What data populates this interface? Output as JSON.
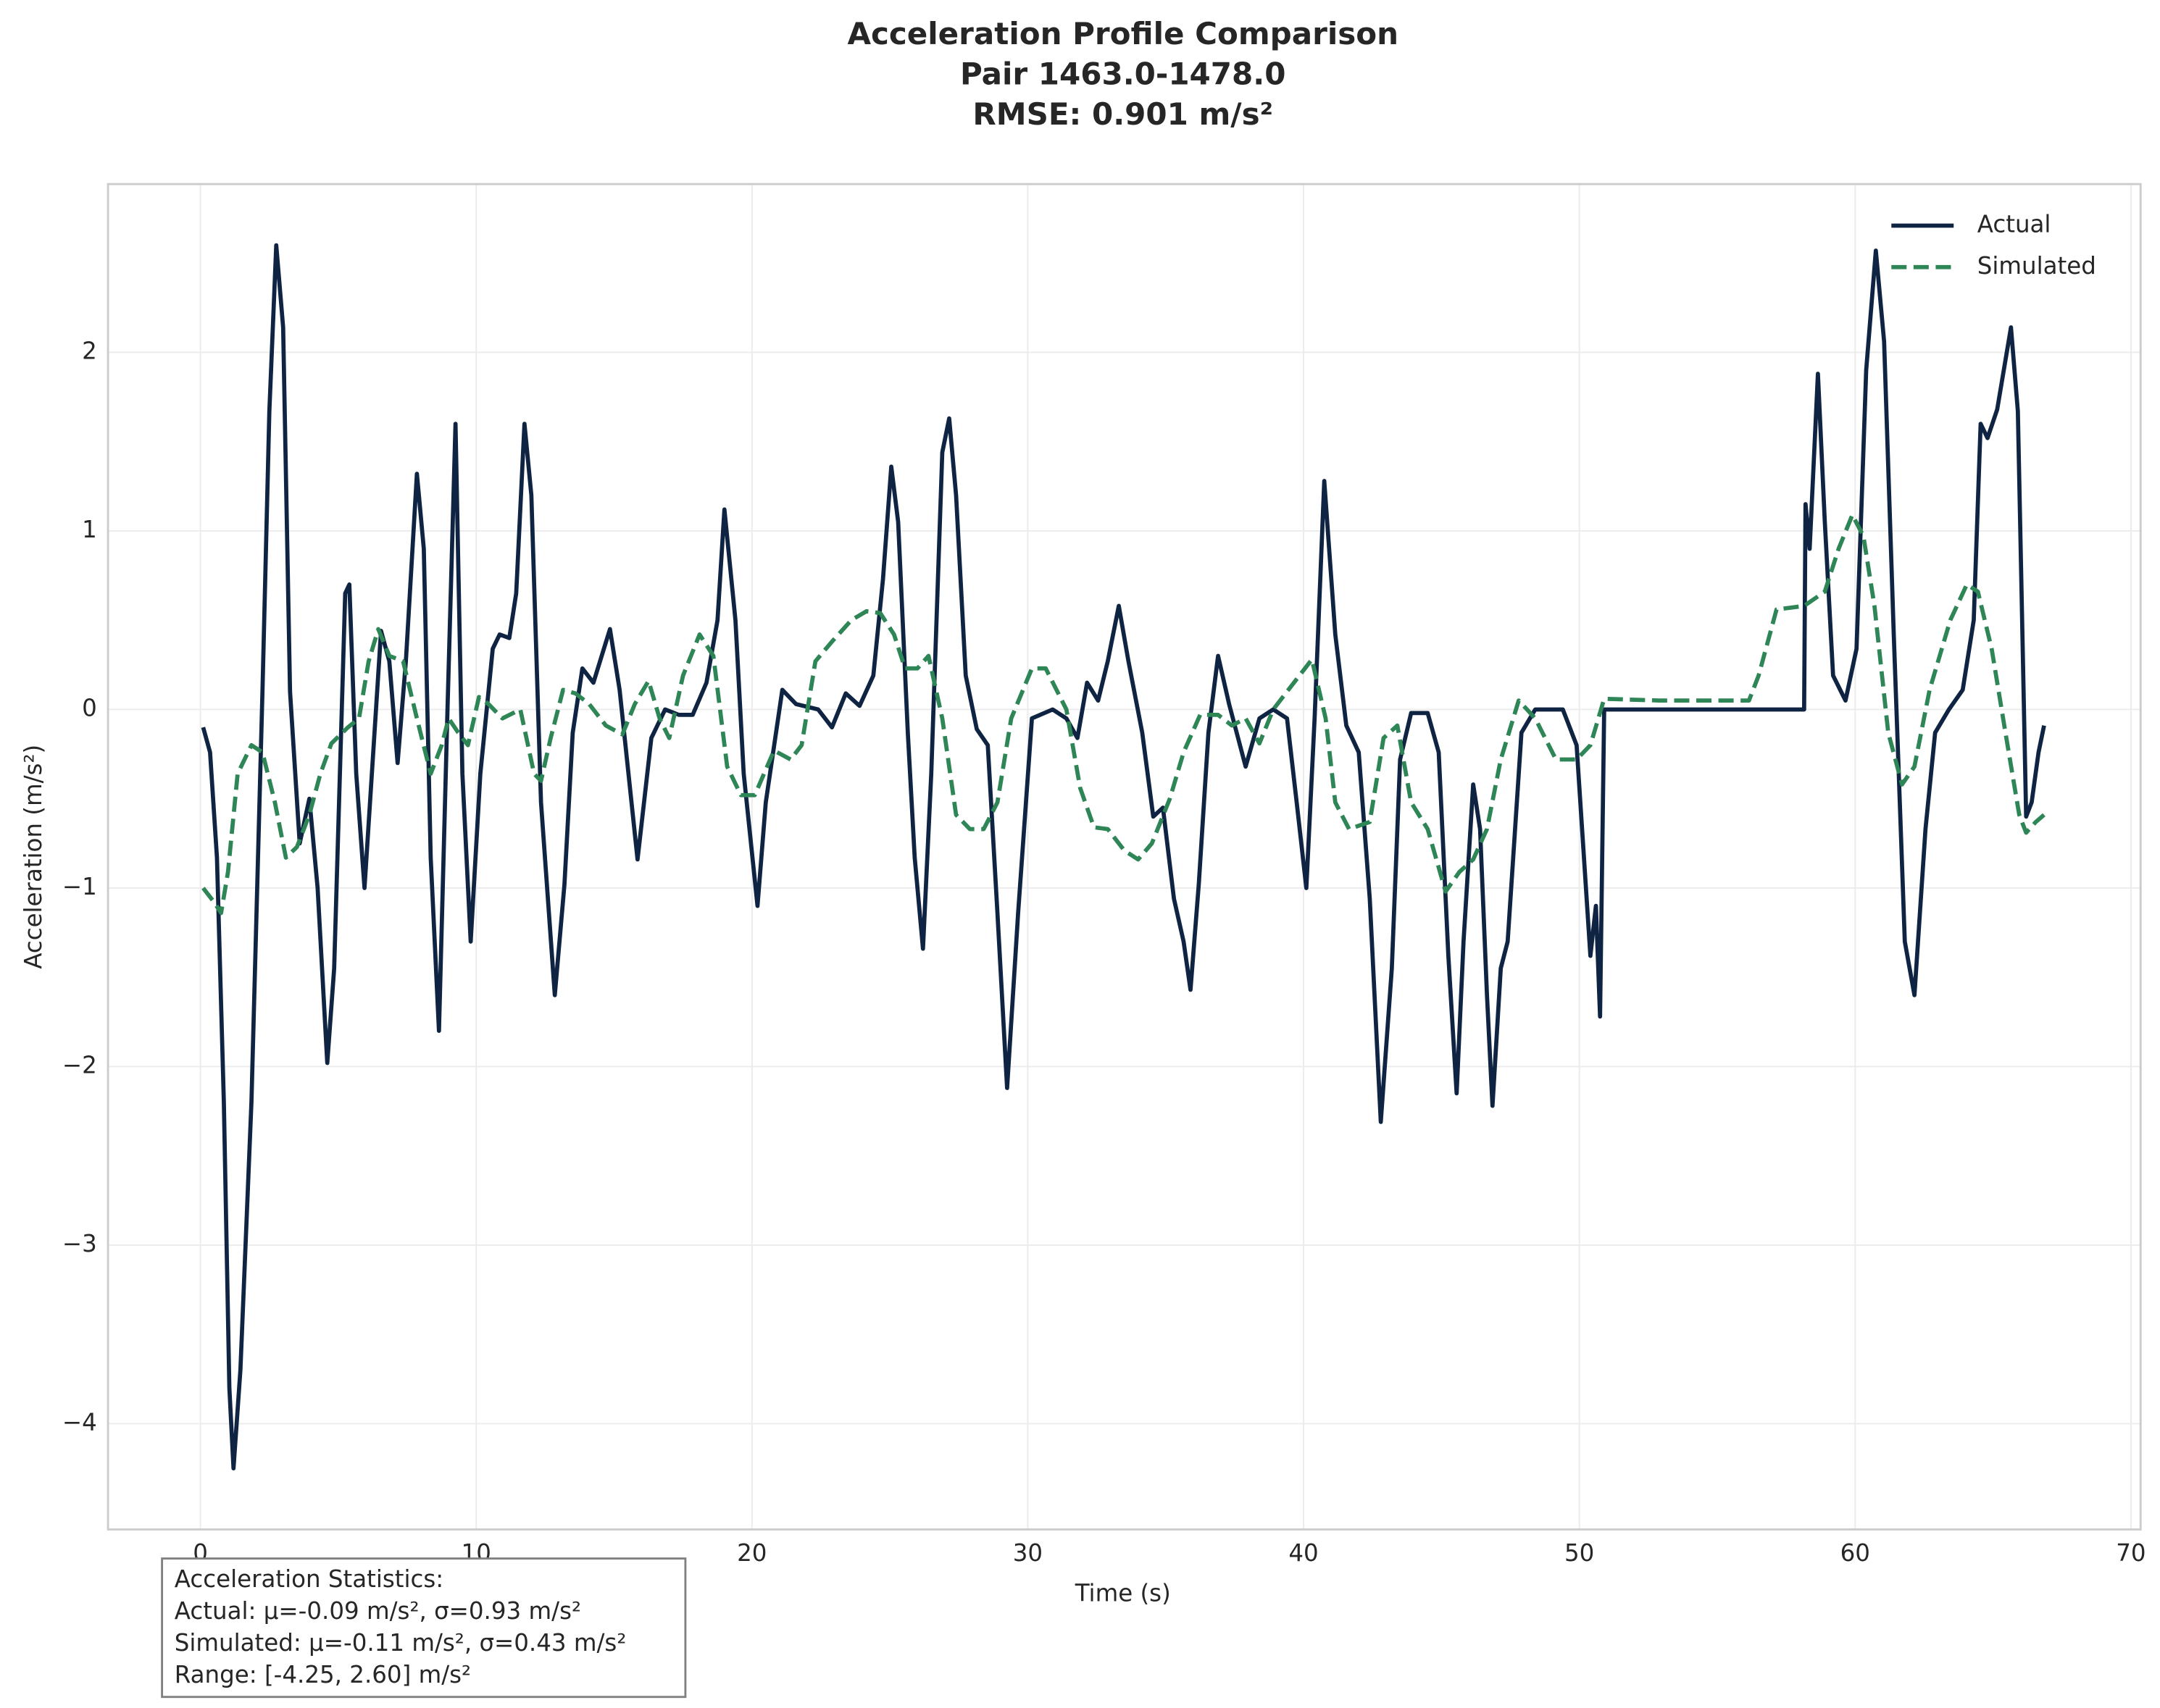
{
  "chart_data": {
    "type": "line",
    "title": "Acceleration Profile Comparison",
    "subtitle": "Pair 1463.0-1478.0",
    "rmse": "RMSE: 0.901 m/s²",
    "x_label": "Time (s)",
    "y_label": "Acceleration (m/s²)",
    "xlim": [
      -3.35,
      70.35
    ],
    "ylim": [
      -4.5925,
      2.9425
    ],
    "xticks": [
      0,
      10,
      20,
      30,
      40,
      50,
      60,
      70
    ],
    "yticks": [
      {
        "value": -4,
        "label": "−4"
      },
      {
        "value": -3,
        "label": "−3"
      },
      {
        "value": -2,
        "label": "−2"
      },
      {
        "value": -1,
        "label": "−1"
      },
      0,
      1,
      2
    ],
    "grid": true,
    "legend": "upper right",
    "series": [
      {
        "name": "Actual",
        "color": "#0f2342",
        "dash": "solid",
        "x": [
          0.1,
          0.35,
          0.6,
          0.85,
          1.05,
          1.2,
          1.45,
          1.85,
          2.25,
          2.5,
          2.75,
          3.0,
          3.25,
          3.6,
          3.95,
          4.25,
          4.6,
          4.85,
          5.25,
          5.4,
          5.65,
          5.95,
          6.25,
          6.55,
          6.85,
          7.15,
          7.45,
          7.85,
          8.1,
          8.35,
          8.65,
          8.95,
          9.25,
          9.5,
          9.8,
          10.15,
          10.6,
          10.85,
          11.2,
          11.45,
          11.75,
          12.0,
          12.35,
          12.85,
          13.2,
          13.5,
          13.85,
          14.25,
          14.85,
          15.2,
          15.85,
          16.35,
          16.85,
          17.35,
          17.85,
          18.35,
          18.75,
          19.0,
          19.4,
          19.7,
          20.2,
          20.5,
          21.1,
          21.6,
          22.4,
          22.9,
          23.4,
          23.9,
          24.4,
          24.75,
          25.05,
          25.3,
          25.65,
          25.9,
          26.2,
          26.5,
          26.9,
          27.15,
          27.4,
          27.75,
          28.15,
          28.55,
          28.9,
          29.25,
          29.65,
          30.15,
          30.9,
          31.4,
          31.8,
          32.15,
          32.55,
          32.9,
          33.3,
          33.65,
          34.15,
          34.55,
          34.9,
          35.3,
          35.65,
          35.9,
          36.2,
          36.55,
          36.9,
          37.3,
          37.9,
          38.4,
          38.9,
          39.4,
          39.75,
          40.1,
          40.4,
          40.75,
          41.15,
          41.55,
          42.0,
          42.4,
          42.8,
          43.2,
          43.5,
          43.9,
          44.5,
          44.9,
          45.25,
          45.55,
          45.8,
          46.15,
          46.4,
          46.65,
          46.85,
          47.15,
          47.4,
          47.9,
          48.4,
          49.4,
          49.9,
          50.4,
          50.6,
          50.75,
          50.9,
          58.15,
          58.2,
          58.35,
          58.65,
          58.9,
          59.2,
          59.65,
          60.05,
          60.4,
          60.75,
          61.05,
          61.4,
          61.8,
          62.15,
          62.55,
          62.9,
          63.4,
          63.9,
          64.3,
          64.55,
          64.8,
          65.15,
          65.65,
          65.9,
          66.2,
          66.4,
          66.65,
          66.85
        ],
        "values": [
          -0.1,
          -0.24,
          -0.83,
          -2.2,
          -3.8,
          -4.25,
          -3.7,
          -2.2,
          0.1,
          1.67,
          2.6,
          2.14,
          0.1,
          -0.75,
          -0.5,
          -1.0,
          -1.98,
          -1.45,
          0.65,
          0.7,
          -0.36,
          -1.0,
          -0.28,
          0.44,
          0.27,
          -0.3,
          0.27,
          1.32,
          0.9,
          -0.83,
          -1.8,
          -0.05,
          1.6,
          -0.36,
          -1.3,
          -0.36,
          0.34,
          0.42,
          0.4,
          0.65,
          1.6,
          1.2,
          -0.52,
          -1.6,
          -0.98,
          -0.13,
          0.23,
          0.15,
          0.45,
          0.11,
          -0.84,
          -0.16,
          0,
          -0.03,
          -0.03,
          0.15,
          0.5,
          1.12,
          0.5,
          -0.36,
          -1.1,
          -0.52,
          0.11,
          0.03,
          0,
          -0.1,
          0.09,
          0.02,
          0.19,
          0.73,
          1.36,
          1.05,
          -0.13,
          -0.83,
          -1.34,
          -0.36,
          1.44,
          1.63,
          1.2,
          0.19,
          -0.11,
          -0.2,
          -1.14,
          -2.12,
          -1.14,
          -0.05,
          0,
          -0.05,
          -0.16,
          0.15,
          0.05,
          0.27,
          0.58,
          0.27,
          -0.13,
          -0.6,
          -0.55,
          -1.06,
          -1.3,
          -1.57,
          -0.98,
          -0.13,
          0.3,
          0.03,
          -0.32,
          -0.05,
          0,
          -0.05,
          -0.52,
          -1.0,
          -0.05,
          1.28,
          0.42,
          -0.09,
          -0.24,
          -1.06,
          -2.31,
          -1.45,
          -0.28,
          -0.02,
          -0.02,
          -0.24,
          -1.38,
          -2.15,
          -1.3,
          -0.42,
          -0.67,
          -1.6,
          -2.22,
          -1.45,
          -1.3,
          -0.13,
          0,
          0,
          -0.2,
          -1.38,
          -1.1,
          -1.72,
          0,
          0,
          1.15,
          0.9,
          1.88,
          1.05,
          0.19,
          0.05,
          0.34,
          1.9,
          2.57,
          2.06,
          0.42,
          -1.3,
          -1.6,
          -0.67,
          -0.13,
          0,
          0.11,
          0.5,
          1.6,
          1.52,
          1.68,
          2.14,
          1.67,
          -0.6,
          -0.52,
          -0.24,
          -0.09
        ]
      },
      {
        "name": "Simulated",
        "color": "#2e8555",
        "dash": "dashed",
        "x": [
          0.1,
          0.5,
          0.75,
          1.0,
          1.35,
          1.85,
          2.25,
          2.7,
          3.1,
          3.5,
          3.95,
          4.35,
          4.75,
          5.35,
          5.75,
          6.1,
          6.45,
          6.85,
          7.35,
          7.85,
          8.35,
          8.75,
          9.0,
          9.35,
          9.7,
          10.1,
          10.45,
          10.95,
          11.6,
          12.1,
          12.35,
          12.7,
          13.15,
          13.6,
          14.1,
          14.7,
          15.3,
          15.75,
          16.25,
          16.65,
          17.0,
          17.5,
          18.1,
          18.6,
          19.1,
          19.6,
          20.1,
          20.8,
          21.4,
          21.8,
          22.3,
          22.9,
          23.6,
          24.15,
          24.65,
          25.15,
          25.55,
          26.0,
          26.4,
          26.9,
          27.4,
          27.9,
          28.4,
          28.9,
          29.4,
          30.15,
          30.65,
          31.4,
          31.9,
          32.4,
          32.9,
          33.5,
          34.0,
          34.5,
          35.15,
          35.65,
          36.25,
          36.9,
          37.4,
          37.9,
          38.4,
          38.9,
          39.65,
          40.3,
          40.8,
          41.15,
          41.65,
          42.4,
          42.9,
          43.4,
          43.9,
          44.5,
          45.15,
          45.65,
          46.15,
          46.65,
          47.15,
          47.8,
          48.4,
          49.15,
          49.9,
          50.4,
          50.9,
          52.9,
          56.15,
          56.5,
          57.15,
          58.15,
          58.9,
          59.4,
          59.9,
          60.3,
          60.7,
          61.2,
          61.7,
          62.15,
          62.7,
          63.45,
          64.05,
          64.45,
          64.95,
          65.45,
          65.95,
          66.2,
          66.55,
          66.85
        ],
        "values": [
          -1.0,
          -1.08,
          -1.14,
          -0.91,
          -0.36,
          -0.2,
          -0.24,
          -0.52,
          -0.83,
          -0.77,
          -0.59,
          -0.36,
          -0.19,
          -0.1,
          -0.05,
          0.27,
          0.45,
          0.3,
          0.27,
          -0.05,
          -0.36,
          -0.2,
          -0.05,
          -0.13,
          -0.2,
          0.07,
          0.03,
          -0.05,
          0,
          -0.36,
          -0.4,
          -0.16,
          0.11,
          0.09,
          0.03,
          -0.09,
          -0.14,
          0.03,
          0.16,
          -0.05,
          -0.16,
          0.19,
          0.42,
          0.3,
          -0.32,
          -0.48,
          -0.48,
          -0.23,
          -0.28,
          -0.2,
          0.27,
          0.38,
          0.5,
          0.55,
          0.54,
          0.42,
          0.23,
          0.23,
          0.3,
          -0.05,
          -0.59,
          -0.67,
          -0.67,
          -0.52,
          -0.05,
          0.23,
          0.23,
          0,
          -0.44,
          -0.66,
          -0.67,
          -0.79,
          -0.84,
          -0.75,
          -0.5,
          -0.24,
          -0.03,
          -0.03,
          -0.09,
          -0.05,
          -0.19,
          0,
          0.15,
          0.28,
          -0.05,
          -0.52,
          -0.67,
          -0.63,
          -0.16,
          -0.09,
          -0.52,
          -0.67,
          -1.02,
          -0.91,
          -0.84,
          -0.67,
          -0.28,
          0.05,
          -0.05,
          -0.28,
          -0.28,
          -0.2,
          0.06,
          0.05,
          0.05,
          0.19,
          0.56,
          0.58,
          0.66,
          0.9,
          1.09,
          0.97,
          0.58,
          -0.13,
          -0.42,
          -0.32,
          0.11,
          0.5,
          0.7,
          0.66,
          0.34,
          -0.13,
          -0.59,
          -0.69,
          -0.63,
          -0.59
        ]
      }
    ],
    "stats_box": [
      "Acceleration Statistics:",
      "Actual: μ=-0.09 m/s², σ=0.93 m/s²",
      "Simulated: μ=-0.11 m/s², σ=0.43 m/s²",
      "Range: [-4.25, 2.60] m/s²"
    ]
  }
}
